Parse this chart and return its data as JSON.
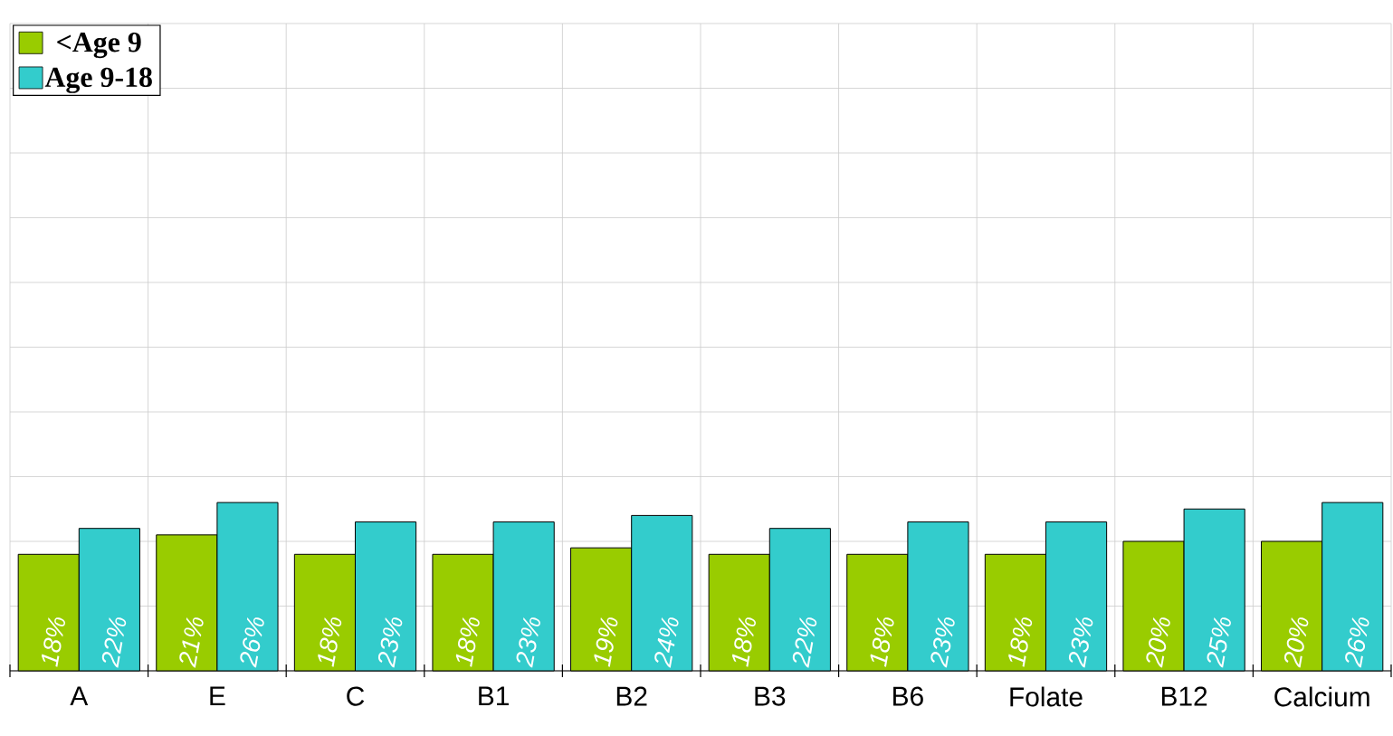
{
  "chart_data": {
    "type": "bar",
    "categories": [
      "A",
      "E",
      "C",
      "B1",
      "B2",
      "B3",
      "B6",
      "Folate",
      "B12",
      "Calcium"
    ],
    "series": [
      {
        "name": "<Age 9",
        "color": "#99cc00",
        "values": [
          18,
          21,
          18,
          18,
          19,
          18,
          18,
          18,
          20,
          20
        ],
        "value_labels": [
          "18%",
          "21%",
          "18%",
          "18%",
          "19%",
          "18%",
          "18%",
          "18%",
          "20%",
          "20%"
        ]
      },
      {
        "name": "Age 9-18",
        "color": "#33cccc",
        "values": [
          22,
          26,
          23,
          23,
          24,
          22,
          23,
          23,
          25,
          26
        ],
        "value_labels": [
          "22%",
          "26%",
          "23%",
          "23%",
          "24%",
          "22%",
          "23%",
          "23%",
          "25%",
          "26%"
        ]
      }
    ],
    "ylim": [
      0,
      100
    ],
    "yticks": [
      {
        "value": 0,
        "label": null
      },
      {
        "value": 10,
        "label": null
      },
      {
        "value": 20,
        "label": null
      },
      {
        "value": 30,
        "label": null
      },
      {
        "value": 40,
        "label": null
      },
      {
        "value": 50,
        "label": null
      },
      {
        "value": 60,
        "label": null
      },
      {
        "value": 70,
        "label": null
      },
      {
        "value": 80,
        "label": null
      },
      {
        "value": 90,
        "label": null
      },
      {
        "value": 100,
        "label": null
      }
    ],
    "tick_labels": "x",
    "grid": true,
    "legend": "top left"
  }
}
